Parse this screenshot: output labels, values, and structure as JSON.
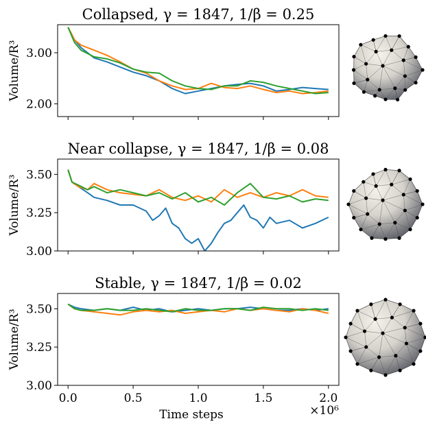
{
  "chart_data": [
    {
      "type": "line",
      "title": "Collapsed, γ = 1847, 1/β = 0.25",
      "ylabel": "Volume/R³",
      "xlabel": "",
      "xlim": [
        -0.08,
        2.08
      ],
      "ylim": [
        1.75,
        3.55
      ],
      "xticks": [
        0.0,
        0.5,
        1.0,
        1.5,
        2.0
      ],
      "xtick_labels": [
        "",
        "",
        "",
        "",
        ""
      ],
      "yticks": [
        2.0,
        3.0
      ],
      "ytick_labels": [
        "2.00",
        "3.00"
      ],
      "x_multiplier": "",
      "grid": false,
      "series": [
        {
          "color": "#1f77b4",
          "x": [
            0,
            0.05,
            0.1,
            0.2,
            0.3,
            0.4,
            0.5,
            0.6,
            0.7,
            0.8,
            0.9,
            1.0,
            1.1,
            1.2,
            1.3,
            1.4,
            1.5,
            1.6,
            1.7,
            1.8,
            1.9,
            2.0
          ],
          "y": [
            3.5,
            3.25,
            3.1,
            2.9,
            2.82,
            2.72,
            2.62,
            2.55,
            2.45,
            2.3,
            2.2,
            2.25,
            2.3,
            2.35,
            2.38,
            2.4,
            2.35,
            2.25,
            2.28,
            2.32,
            2.3,
            2.28
          ]
        },
        {
          "color": "#ff7f0e",
          "x": [
            0,
            0.05,
            0.1,
            0.2,
            0.3,
            0.4,
            0.5,
            0.6,
            0.7,
            0.8,
            0.9,
            1.0,
            1.1,
            1.2,
            1.3,
            1.4,
            1.5,
            1.6,
            1.7,
            1.8,
            1.9,
            2.0
          ],
          "y": [
            3.5,
            3.25,
            3.15,
            3.05,
            2.95,
            2.82,
            2.68,
            2.6,
            2.45,
            2.35,
            2.28,
            2.3,
            2.4,
            2.32,
            2.3,
            2.35,
            2.28,
            2.22,
            2.25,
            2.2,
            2.22,
            2.25
          ]
        },
        {
          "color": "#2ca02c",
          "x": [
            0,
            0.05,
            0.1,
            0.2,
            0.3,
            0.4,
            0.5,
            0.6,
            0.7,
            0.8,
            0.9,
            1.0,
            1.1,
            1.2,
            1.3,
            1.4,
            1.5,
            1.6,
            1.7,
            1.8,
            1.9,
            2.0
          ],
          "y": [
            3.5,
            3.2,
            3.05,
            2.92,
            2.88,
            2.8,
            2.68,
            2.62,
            2.6,
            2.45,
            2.35,
            2.3,
            2.28,
            2.35,
            2.35,
            2.45,
            2.42,
            2.35,
            2.3,
            2.25,
            2.2,
            2.22
          ]
        }
      ]
    },
    {
      "type": "line",
      "title": "Near collapse, γ = 1847, 1/β = 0.08",
      "ylabel": "Volume/R³",
      "xlabel": "",
      "xlim": [
        -0.08,
        2.08
      ],
      "ylim": [
        3.0,
        3.6
      ],
      "xticks": [
        0.0,
        0.5,
        1.0,
        1.5,
        2.0
      ],
      "xtick_labels": [
        "",
        "",
        "",
        "",
        ""
      ],
      "yticks": [
        3.0,
        3.25,
        3.5
      ],
      "ytick_labels": [
        "3.00",
        "3.25",
        "3.50"
      ],
      "x_multiplier": "",
      "grid": false,
      "series": [
        {
          "color": "#1f77b4",
          "x": [
            0,
            0.03,
            0.08,
            0.15,
            0.2,
            0.3,
            0.4,
            0.5,
            0.6,
            0.65,
            0.7,
            0.75,
            0.8,
            0.85,
            0.9,
            0.95,
            1.0,
            1.05,
            1.1,
            1.15,
            1.2,
            1.25,
            1.3,
            1.35,
            1.4,
            1.45,
            1.5,
            1.55,
            1.6,
            1.7,
            1.8,
            1.9,
            2.0
          ],
          "y": [
            3.53,
            3.45,
            3.42,
            3.38,
            3.35,
            3.33,
            3.3,
            3.3,
            3.26,
            3.2,
            3.23,
            3.28,
            3.18,
            3.15,
            3.08,
            3.05,
            3.08,
            3.0,
            3.05,
            3.12,
            3.18,
            3.2,
            3.25,
            3.3,
            3.22,
            3.2,
            3.15,
            3.22,
            3.18,
            3.2,
            3.15,
            3.18,
            3.22
          ]
        },
        {
          "color": "#ff7f0e",
          "x": [
            0,
            0.03,
            0.08,
            0.15,
            0.2,
            0.3,
            0.4,
            0.5,
            0.6,
            0.7,
            0.8,
            0.9,
            1.0,
            1.1,
            1.2,
            1.3,
            1.4,
            1.5,
            1.6,
            1.7,
            1.8,
            1.9,
            2.0
          ],
          "y": [
            3.53,
            3.45,
            3.42,
            3.4,
            3.44,
            3.4,
            3.38,
            3.37,
            3.36,
            3.4,
            3.35,
            3.33,
            3.36,
            3.32,
            3.4,
            3.35,
            3.38,
            3.35,
            3.38,
            3.36,
            3.4,
            3.36,
            3.35
          ]
        },
        {
          "color": "#2ca02c",
          "x": [
            0,
            0.03,
            0.08,
            0.15,
            0.2,
            0.3,
            0.4,
            0.5,
            0.6,
            0.7,
            0.8,
            0.9,
            1.0,
            1.1,
            1.2,
            1.3,
            1.4,
            1.5,
            1.6,
            1.7,
            1.8,
            1.9,
            2.0
          ],
          "y": [
            3.53,
            3.45,
            3.43,
            3.4,
            3.42,
            3.38,
            3.4,
            3.38,
            3.36,
            3.38,
            3.34,
            3.38,
            3.32,
            3.35,
            3.3,
            3.38,
            3.44,
            3.35,
            3.34,
            3.36,
            3.32,
            3.34,
            3.33
          ]
        }
      ]
    },
    {
      "type": "line",
      "title": "Stable, γ = 1847, 1/β = 0.02",
      "ylabel": "Volume/R³",
      "xlabel": "Time steps",
      "xlim": [
        -0.08,
        2.08
      ],
      "ylim": [
        3.0,
        3.6
      ],
      "xticks": [
        0.0,
        0.5,
        1.0,
        1.5,
        2.0
      ],
      "xtick_labels": [
        "0.0",
        "0.5",
        "1.0",
        "1.5",
        "2.0"
      ],
      "yticks": [
        3.0,
        3.25,
        3.5
      ],
      "ytick_labels": [
        "3.00",
        "3.25",
        "3.50"
      ],
      "x_multiplier": "×10⁶",
      "grid": false,
      "series": [
        {
          "color": "#1f77b4",
          "x": [
            0,
            0.05,
            0.1,
            0.2,
            0.3,
            0.4,
            0.5,
            0.6,
            0.7,
            0.8,
            0.9,
            1.0,
            1.1,
            1.2,
            1.3,
            1.4,
            1.5,
            1.6,
            1.7,
            1.8,
            1.9,
            2.0
          ],
          "y": [
            3.53,
            3.51,
            3.5,
            3.49,
            3.5,
            3.49,
            3.51,
            3.49,
            3.5,
            3.48,
            3.49,
            3.5,
            3.49,
            3.5,
            3.5,
            3.51,
            3.5,
            3.49,
            3.49,
            3.5,
            3.49,
            3.5
          ]
        },
        {
          "color": "#ff7f0e",
          "x": [
            0,
            0.05,
            0.1,
            0.2,
            0.3,
            0.4,
            0.5,
            0.6,
            0.7,
            0.8,
            0.9,
            1.0,
            1.1,
            1.2,
            1.3,
            1.4,
            1.5,
            1.6,
            1.7,
            1.8,
            1.9,
            2.0
          ],
          "y": [
            3.53,
            3.5,
            3.49,
            3.48,
            3.47,
            3.46,
            3.48,
            3.49,
            3.48,
            3.49,
            3.47,
            3.48,
            3.49,
            3.48,
            3.5,
            3.49,
            3.5,
            3.49,
            3.48,
            3.5,
            3.49,
            3.47
          ]
        },
        {
          "color": "#2ca02c",
          "x": [
            0,
            0.05,
            0.1,
            0.2,
            0.3,
            0.4,
            0.5,
            0.6,
            0.7,
            0.8,
            0.9,
            1.0,
            1.1,
            1.2,
            1.3,
            1.4,
            1.5,
            1.6,
            1.7,
            1.8,
            1.9,
            2.0
          ],
          "y": [
            3.53,
            3.5,
            3.49,
            3.49,
            3.5,
            3.49,
            3.49,
            3.5,
            3.49,
            3.48,
            3.5,
            3.49,
            3.49,
            3.5,
            3.5,
            3.49,
            3.51,
            3.5,
            3.5,
            3.49,
            3.5,
            3.49
          ]
        }
      ]
    }
  ],
  "illustrations": [
    {
      "name": "collapsed-vesicle-mesh",
      "shape": "deflated"
    },
    {
      "name": "near-collapse-vesicle-mesh",
      "shape": "dented"
    },
    {
      "name": "stable-vesicle-mesh",
      "shape": "round"
    }
  ]
}
